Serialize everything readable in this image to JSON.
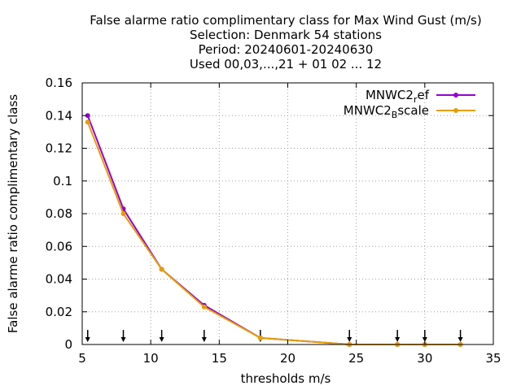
{
  "chart_data": {
    "type": "line",
    "title_lines": [
      "False alarme ratio complimentary class  for Max Wind Gust (m/s)",
      "Selection: Denmark     54 stations",
      "Period: 20240601-20240630",
      "Used 00,03,...,21 + 01 02 ... 12"
    ],
    "xlabel": "thresholds m/s",
    "ylabel": "False alarme ratio complimentary class",
    "xlim": [
      5,
      35
    ],
    "ylim": [
      0,
      0.16
    ],
    "x_ticks": [
      5,
      10,
      15,
      20,
      25,
      30,
      35
    ],
    "x_tick_labels": [
      "5",
      "10",
      "15",
      "20",
      "25",
      "30",
      "35"
    ],
    "y_ticks": [
      0,
      0.02,
      0.04,
      0.06,
      0.08,
      0.1,
      0.12,
      0.14,
      0.16
    ],
    "y_tick_labels": [
      "0",
      "0.02",
      "0.04",
      "0.06",
      "0.08",
      "0.1",
      "0.12",
      "0.14",
      "0.16"
    ],
    "grid": true,
    "legend_position": "top-right",
    "x": [
      5.4,
      8.0,
      10.8,
      13.9,
      18.0,
      24.5,
      28.0,
      30.0,
      32.6
    ],
    "series": [
      {
        "name": "MNWC2_ref",
        "legend_main": "MNWC2",
        "legend_sub": "r",
        "legend_tail": "ef",
        "color": "#9400d3",
        "values": [
          0.14,
          0.083,
          0.046,
          0.024,
          0.004,
          0.0,
          0.0,
          0.0,
          0.0
        ]
      },
      {
        "name": "MNWC2_Bscale",
        "legend_main": "MNWC2",
        "legend_sub": "B",
        "legend_tail": "scale",
        "color": "#e69f00",
        "values": [
          0.136,
          0.08,
          0.046,
          0.023,
          0.004,
          0.0,
          0.0,
          0.0,
          0.0
        ]
      }
    ],
    "threshold_markers_x": [
      5.4,
      8.0,
      10.8,
      13.9,
      18.0,
      24.5,
      28.0,
      30.0,
      32.6
    ]
  }
}
